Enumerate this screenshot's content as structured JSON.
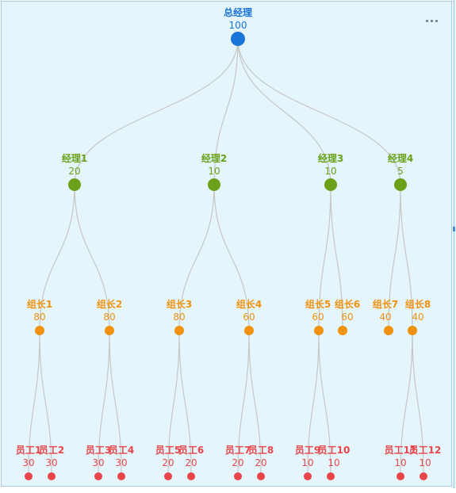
{
  "colors": {
    "root": "#1a73d9",
    "manager": "#6aa119",
    "leader": "#f0920f",
    "staff": "#e8464a",
    "link": "#c6c6c6"
  },
  "menu": {
    "icon": "more-horizontal-icon"
  },
  "tree": {
    "name": "总经理",
    "value": "100",
    "level": "root",
    "children": [
      {
        "name": "经理1",
        "value": "20",
        "level": "manager",
        "children": [
          {
            "name": "组长1",
            "value": "80",
            "level": "leader",
            "children": [
              {
                "name": "员工1",
                "value": "30",
                "level": "staff"
              },
              {
                "name": "员工2",
                "value": "30",
                "level": "staff"
              }
            ]
          },
          {
            "name": "组长2",
            "value": "80",
            "level": "leader",
            "children": [
              {
                "name": "员工3",
                "value": "30",
                "level": "staff"
              },
              {
                "name": "员工4",
                "value": "30",
                "level": "staff"
              }
            ]
          }
        ]
      },
      {
        "name": "经理2",
        "value": "10",
        "level": "manager",
        "children": [
          {
            "name": "组长3",
            "value": "80",
            "level": "leader",
            "children": [
              {
                "name": "员工5",
                "value": "20",
                "level": "staff"
              },
              {
                "name": "员工6",
                "value": "20",
                "level": "staff"
              }
            ]
          },
          {
            "name": "组长4",
            "value": "60",
            "level": "leader",
            "children": [
              {
                "name": "员工7",
                "value": "20",
                "level": "staff"
              },
              {
                "name": "员工8",
                "value": "20",
                "level": "staff"
              }
            ]
          }
        ]
      },
      {
        "name": "经理3",
        "value": "10",
        "level": "manager",
        "children": [
          {
            "name": "组长5",
            "value": "60",
            "level": "leader",
            "children": [
              {
                "name": "员工9",
                "value": "10",
                "level": "staff"
              },
              {
                "name": "员工10",
                "value": "10",
                "level": "staff"
              }
            ]
          },
          {
            "name": "组长6",
            "value": "60",
            "level": "leader"
          }
        ]
      },
      {
        "name": "经理4",
        "value": "5",
        "level": "manager",
        "children": [
          {
            "name": "组长7",
            "value": "40",
            "level": "leader"
          },
          {
            "name": "组长8",
            "value": "40",
            "level": "leader",
            "children": [
              {
                "name": "员工11",
                "value": "10",
                "level": "staff"
              },
              {
                "name": "员工12",
                "value": "10",
                "level": "staff"
              }
            ]
          }
        ]
      }
    ]
  }
}
